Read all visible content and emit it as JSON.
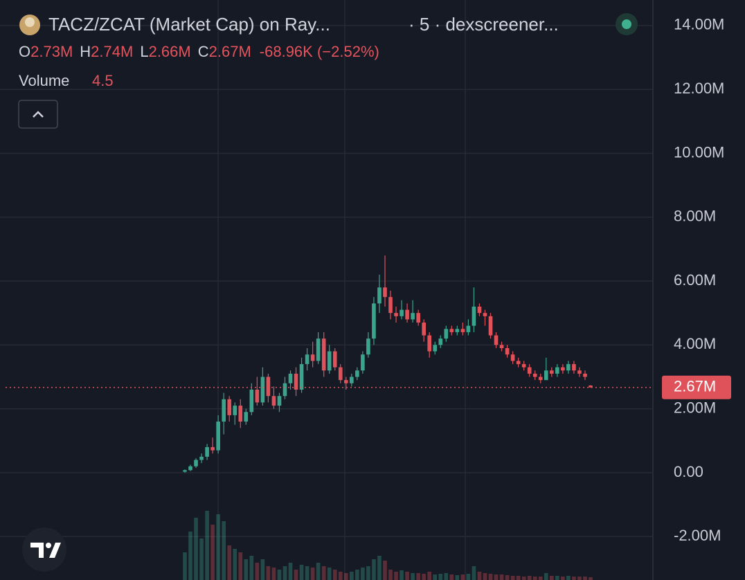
{
  "chart_data": {
    "type": "candlestick",
    "title": "TACZ/ZCAT (Market Cap) on Ray...",
    "subtitle": "· 5 · dexscreener...",
    "ohlc": [
      {
        "label": "O",
        "value": "2.73M"
      },
      {
        "label": "H",
        "value": "2.74M"
      },
      {
        "label": "L",
        "value": "2.66M"
      },
      {
        "label": "C",
        "value": "2.67M"
      }
    ],
    "change": "-68.96K (−2.52%)",
    "volume_label": "Volume",
    "volume_value": "4.5",
    "up_color": "#3aa58c",
    "down_color": "#e0525a",
    "grid": true,
    "ylim": [
      -3.36,
      14.8
    ],
    "yticks": [
      {
        "value": -2,
        "label": "-2.00M"
      },
      {
        "value": 0,
        "label": "0.00"
      },
      {
        "value": 2,
        "label": "2.00M"
      },
      {
        "value": 4,
        "label": "4.00M"
      },
      {
        "value": 6,
        "label": "6.00M"
      },
      {
        "value": 8,
        "label": "8.00M"
      },
      {
        "value": 10,
        "label": "10.00M"
      },
      {
        "value": 12,
        "label": "12.00M"
      },
      {
        "value": 14,
        "label": "14.00M"
      }
    ],
    "last_price": {
      "value": 2.67,
      "label": "2.67M"
    },
    "categories": [
      null,
      null,
      null,
      null,
      null,
      null,
      null,
      null,
      null,
      null,
      null,
      null,
      null,
      null,
      null,
      null,
      null,
      null,
      null,
      null,
      null,
      null,
      null,
      null,
      null,
      null,
      null,
      null,
      null,
      null,
      null,
      null,
      null,
      null,
      null,
      null,
      null,
      null,
      null,
      null,
      null,
      null,
      null,
      null,
      null,
      null,
      null,
      null,
      null,
      null,
      null,
      null,
      null,
      null,
      null,
      null,
      null,
      null,
      null,
      null,
      null,
      null,
      null,
      null,
      null,
      null,
      null,
      null,
      null,
      null,
      null,
      null,
      null,
      null
    ],
    "open": [
      0.03,
      0.08,
      0.2,
      0.4,
      0.5,
      0.8,
      0.7,
      1.6,
      2.3,
      1.8,
      2.1,
      1.6,
      1.9,
      2.6,
      2.2,
      3.0,
      2.4,
      2.1,
      2.4,
      2.8,
      3.1,
      2.6,
      3.4,
      3.7,
      3.5,
      4.2,
      3.2,
      3.8,
      3.3,
      2.9,
      2.8,
      3.0,
      3.2,
      3.7,
      4.2,
      5.3,
      5.8,
      5.5,
      5.0,
      4.9,
      5.1,
      4.8,
      5.0,
      4.7,
      4.3,
      3.8,
      4.0,
      4.2,
      4.5,
      4.4,
      4.5,
      4.4,
      4.6,
      5.2,
      5.0,
      4.9,
      4.3,
      4.0,
      3.9,
      3.7,
      3.5,
      3.4,
      3.3,
      3.1,
      3.0,
      2.9,
      3.2,
      3.1,
      3.3,
      3.2,
      3.4,
      3.2,
      3.1,
      2.73
    ],
    "high": [
      0.1,
      0.25,
      0.45,
      0.6,
      0.9,
      1.1,
      1.8,
      2.5,
      2.4,
      2.2,
      2.3,
      2.0,
      2.8,
      3.0,
      3.3,
      3.1,
      2.7,
      2.5,
      3.0,
      3.2,
      3.3,
      3.6,
      3.9,
      4.1,
      4.4,
      4.4,
      4.0,
      3.9,
      3.4,
      3.0,
      3.1,
      3.3,
      3.8,
      4.4,
      5.5,
      6.2,
      6.8,
      5.7,
      5.2,
      5.4,
      5.3,
      5.4,
      5.1,
      4.8,
      4.4,
      4.1,
      4.3,
      4.6,
      4.6,
      4.6,
      4.7,
      4.8,
      5.8,
      5.3,
      5.1,
      5.0,
      4.4,
      4.1,
      4.0,
      3.8,
      3.6,
      3.5,
      3.4,
      3.2,
      3.1,
      3.6,
      3.3,
      3.4,
      3.4,
      3.5,
      3.5,
      3.3,
      3.2,
      2.74
    ],
    "low": [
      0.0,
      0.05,
      0.15,
      0.3,
      0.4,
      0.6,
      0.6,
      1.2,
      1.6,
      1.5,
      1.4,
      1.5,
      1.8,
      2.1,
      2.1,
      2.2,
      2.0,
      1.9,
      2.3,
      2.6,
      2.4,
      2.5,
      3.2,
      3.3,
      3.4,
      3.0,
      3.1,
      3.2,
      2.8,
      2.6,
      2.7,
      2.9,
      3.1,
      3.6,
      4.0,
      5.0,
      5.2,
      4.8,
      4.7,
      4.8,
      4.7,
      4.7,
      4.6,
      4.1,
      3.6,
      3.7,
      3.9,
      4.1,
      4.3,
      4.3,
      4.3,
      4.3,
      4.4,
      4.9,
      4.6,
      4.2,
      3.9,
      3.8,
      3.6,
      3.4,
      3.3,
      3.2,
      3.0,
      2.9,
      2.8,
      2.9,
      3.0,
      3.0,
      3.1,
      3.1,
      3.1,
      3.0,
      2.9,
      2.66
    ],
    "close": [
      0.08,
      0.2,
      0.4,
      0.5,
      0.8,
      0.7,
      1.6,
      2.3,
      1.8,
      2.1,
      1.6,
      1.9,
      2.6,
      2.2,
      3.0,
      2.4,
      2.1,
      2.4,
      2.8,
      3.1,
      2.6,
      3.4,
      3.7,
      3.5,
      4.2,
      3.2,
      3.8,
      3.3,
      2.9,
      2.8,
      3.0,
      3.2,
      3.7,
      4.2,
      5.3,
      5.8,
      5.5,
      5.0,
      4.9,
      5.1,
      4.8,
      5.0,
      4.7,
      4.3,
      3.8,
      4.0,
      4.2,
      4.5,
      4.4,
      4.5,
      4.4,
      4.6,
      5.2,
      5.0,
      4.9,
      4.3,
      4.0,
      3.9,
      3.7,
      3.5,
      3.4,
      3.3,
      3.1,
      3.0,
      2.9,
      3.2,
      3.1,
      3.3,
      3.2,
      3.4,
      3.2,
      3.1,
      3.0,
      2.67
    ],
    "volume": [
      40,
      70,
      90,
      60,
      100,
      80,
      95,
      85,
      50,
      45,
      40,
      30,
      35,
      25,
      30,
      20,
      18,
      15,
      20,
      25,
      15,
      22,
      20,
      18,
      25,
      20,
      18,
      15,
      12,
      10,
      12,
      15,
      18,
      20,
      30,
      35,
      28,
      15,
      12,
      14,
      12,
      10,
      10,
      9,
      12,
      8,
      9,
      10,
      8,
      7,
      8,
      9,
      20,
      12,
      10,
      9,
      8,
      8,
      7,
      6,
      6,
      5,
      6,
      5,
      5,
      10,
      6,
      6,
      5,
      6,
      5,
      5,
      5,
      4
    ]
  }
}
